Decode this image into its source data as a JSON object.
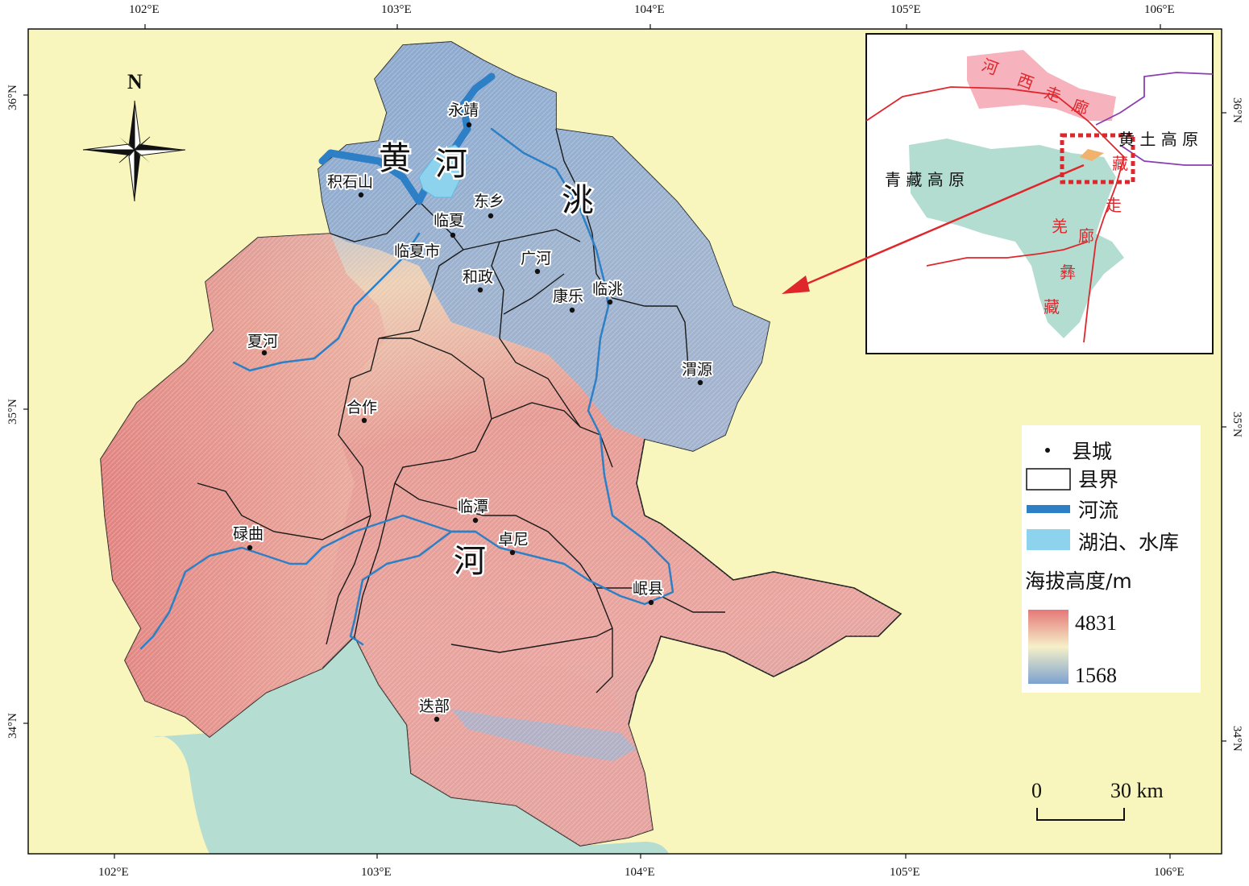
{
  "axes": {
    "top_lon": [
      "102°E",
      "103°E",
      "104°E",
      "105°E",
      "106°E"
    ],
    "bottom_lon": [
      "102°E",
      "103°E",
      "104°E",
      "105°E",
      "106°E"
    ],
    "left_lat": [
      "36°N",
      "35°N",
      "34°N"
    ],
    "right_lat": [
      "36°N",
      "35°N",
      "34°N"
    ]
  },
  "north_arrow": {
    "label": "N"
  },
  "cities": [
    {
      "name": "永靖"
    },
    {
      "name": "积石山"
    },
    {
      "name": "东乡"
    },
    {
      "name": "临夏"
    },
    {
      "name": "临夏市"
    },
    {
      "name": "广河"
    },
    {
      "name": "和政"
    },
    {
      "name": "康乐"
    },
    {
      "name": "临洮"
    },
    {
      "name": "夏河"
    },
    {
      "name": "渭源"
    },
    {
      "name": "合作"
    },
    {
      "name": "临潭"
    },
    {
      "name": "卓尼"
    },
    {
      "name": "碌曲"
    },
    {
      "name": "岷县"
    },
    {
      "name": "迭部"
    }
  ],
  "rivers": {
    "huang_chars": [
      "黄",
      "河"
    ],
    "tao_char": "洮",
    "tao_lower_char": "河"
  },
  "inset": {
    "hexi_chars": [
      "河",
      "西",
      "走",
      "廊"
    ],
    "loess": "黄 土 高 原",
    "qingzang": "青   藏   高   原",
    "zangqiang_chars": [
      "藏",
      "走",
      "廊",
      "彝",
      "藏",
      "羌"
    ],
    "colors": {
      "hexi": "#f6b3bd",
      "plateau": "#b4ddd1",
      "border_red": "#e0262d",
      "border_purple": "#8a3fb0"
    }
  },
  "legend": {
    "county_seat": "县城",
    "county_border": "县界",
    "river": "河流",
    "lake": "湖泊、水库",
    "elevation_title": "海拔高度/m",
    "elev_max": "4831",
    "elev_min": "1568",
    "colors": {
      "river": "#2d7fc6",
      "lake": "#8dd3ee",
      "high": "#e47b7b",
      "mid": "#f4f0c6",
      "low": "#7ea3cf"
    }
  },
  "scale_bar": {
    "zero": "0",
    "max": "30 km"
  },
  "colors": {
    "background": "#f8f6bd",
    "outside_green": "#b5ddd2"
  }
}
